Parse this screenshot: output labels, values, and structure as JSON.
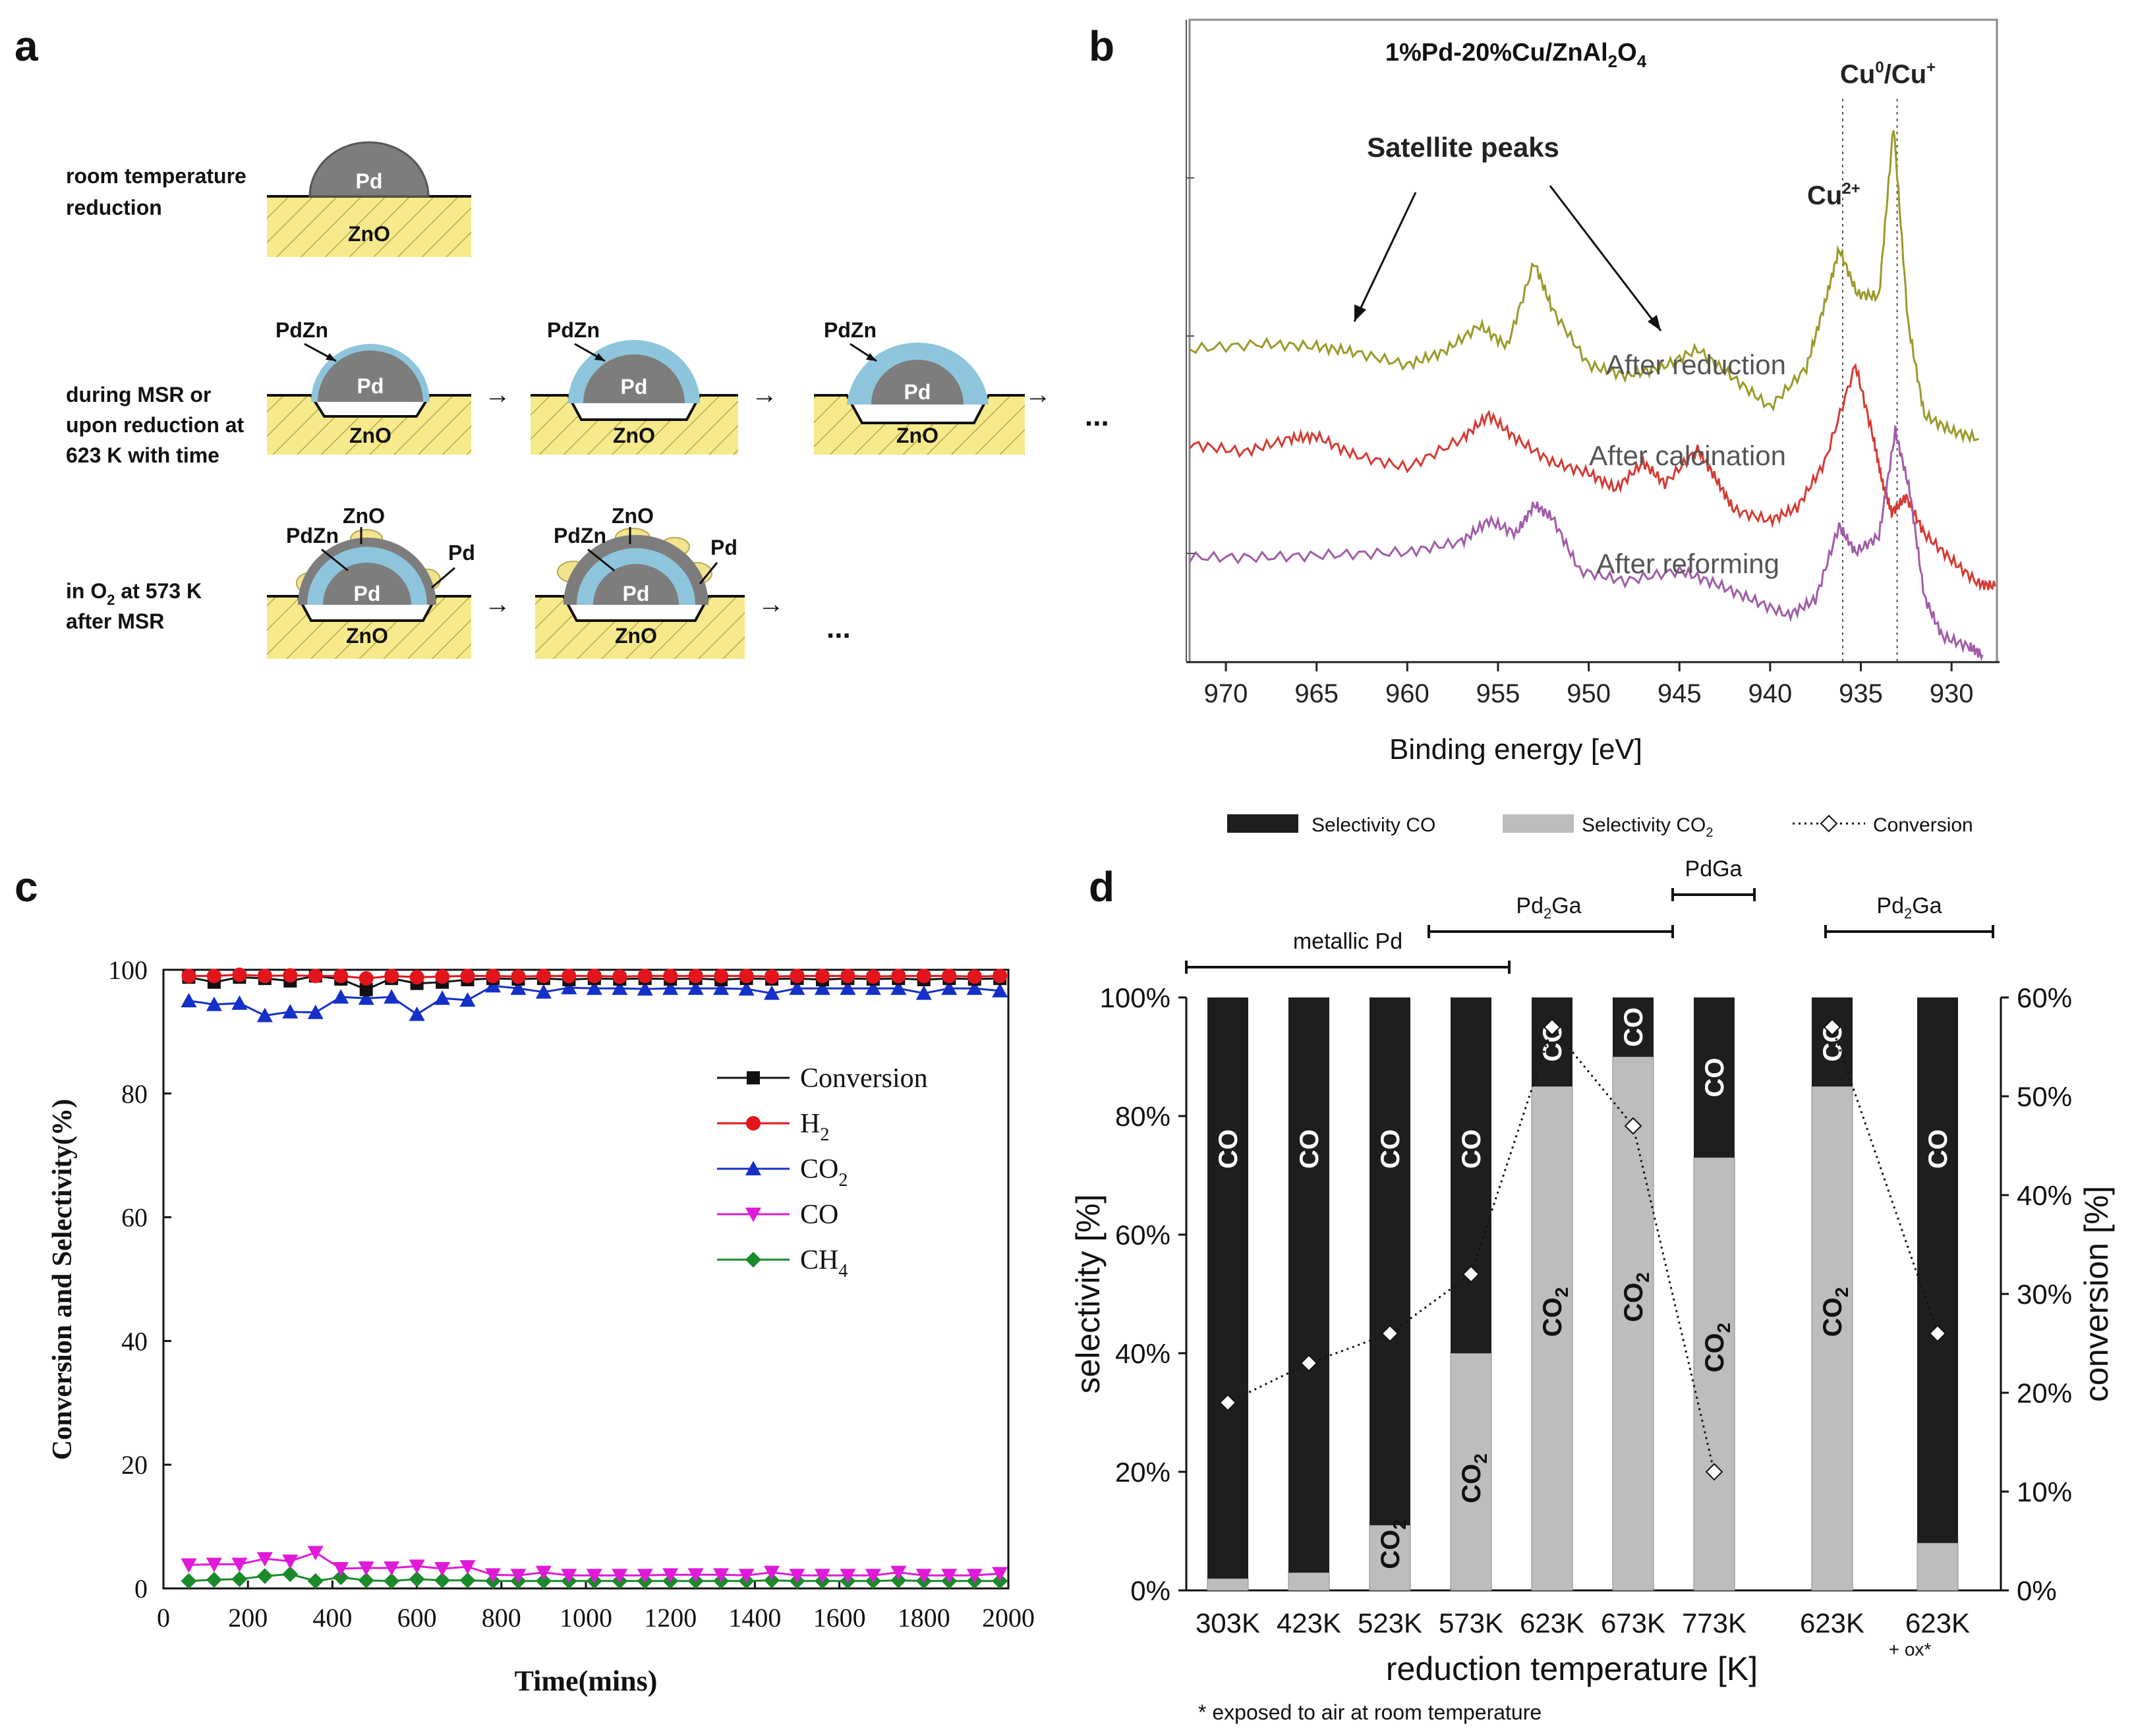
{
  "panels": {
    "a": {
      "label": "a",
      "row1_caption": [
        "room temperature",
        "reduction"
      ],
      "row2_caption": [
        "during MSR or",
        "upon reduction at",
        "623 K with time"
      ],
      "row3_caption": [
        "in O",
        "2",
        " at 573 K",
        "after MSR"
      ],
      "pd": "Pd",
      "zno": "ZnO",
      "pdzn": "PdZn",
      "ellipsis": "..."
    },
    "b": {
      "label": "b"
    },
    "c": {
      "label": "c"
    },
    "d": {
      "label": "d",
      "phase_metallic": "metallic Pd",
      "phase_pd2ga_a": "Pd",
      "phase_pd2ga_b": "2",
      "phase_pd2ga_c": "Ga",
      "phase_pdga": "PdGa",
      "bar_label_co": "CO",
      "bar_label_co2_a": "CO",
      "bar_label_co2_b": "2",
      "footnote": "* exposed to air at room temperature",
      "ox_note": "+ ox*"
    }
  },
  "chart_data": [
    {
      "id": "b",
      "type": "line",
      "title_a": "1%Pd-20%Cu/ZnAl",
      "title_b": "2",
      "title_c": "O",
      "title_d": "4",
      "xlabel": "Binding energy [eV]",
      "xlim": [
        972,
        927.5
      ],
      "xticks": [
        970,
        965,
        960,
        955,
        950,
        945,
        940,
        935,
        930
      ],
      "ylabel": "",
      "annotations": {
        "satellite": "Satellite peaks",
        "cu2plus_a": "Cu",
        "cu2plus_b": "2+",
        "cu0_a": "Cu",
        "cu0_b": "0",
        "cu0_c": "/Cu",
        "cu0_d": "+",
        "ref_lines_ev": [
          936.0,
          933.0
        ]
      },
      "series": [
        {
          "name": "After reduction",
          "color": "#9a9a2a",
          "points": [
            [
              972,
              250
            ],
            [
              968,
              246
            ],
            [
              965,
              248
            ],
            [
              963,
              252
            ],
            [
              960,
              262
            ],
            [
              958,
              252
            ],
            [
              956,
              232
            ],
            [
              954.5,
              248
            ],
            [
              953,
              184
            ],
            [
              952,
              220
            ],
            [
              950,
              262
            ],
            [
              948,
              270
            ],
            [
              946,
              264
            ],
            [
              944,
              250
            ],
            [
              942,
              272
            ],
            [
              940,
              294
            ],
            [
              938,
              264
            ],
            [
              937,
              216
            ],
            [
              936.2,
              174
            ],
            [
              935.2,
              208
            ],
            [
              934,
              210
            ],
            [
              933.2,
              80
            ],
            [
              932.4,
              230
            ],
            [
              931.5,
              300
            ],
            [
              930,
              312
            ],
            [
              928.5,
              318
            ]
          ]
        },
        {
          "name": "After calcination",
          "color": "#d43b33",
          "points": [
            [
              972,
              322
            ],
            [
              969,
              328
            ],
            [
              966.5,
              318
            ],
            [
              965,
              316
            ],
            [
              963,
              330
            ],
            [
              960,
              340
            ],
            [
              957,
              318
            ],
            [
              955.5,
              300
            ],
            [
              954,
              318
            ],
            [
              952,
              336
            ],
            [
              950,
              344
            ],
            [
              948.5,
              356
            ],
            [
              947,
              336
            ],
            [
              945.8,
              352
            ],
            [
              944,
              326
            ],
            [
              943,
              348
            ],
            [
              942,
              372
            ],
            [
              940,
              380
            ],
            [
              938.5,
              370
            ],
            [
              937,
              336
            ],
            [
              935.3,
              262
            ],
            [
              934.3,
              318
            ],
            [
              933.8,
              352
            ],
            [
              933.3,
              374
            ],
            [
              932.5,
              362
            ],
            [
              931.5,
              390
            ],
            [
              930,
              410
            ],
            [
              928.5,
              428
            ],
            [
              927.6,
              430
            ]
          ]
        },
        {
          "name": "After reforming",
          "color": "#a15ca8",
          "points": [
            [
              972,
              408
            ],
            [
              968,
              408
            ],
            [
              964,
              406
            ],
            [
              960,
              404
            ],
            [
              957,
              396
            ],
            [
              955.5,
              380
            ],
            [
              954,
              390
            ],
            [
              953,
              368
            ],
            [
              952,
              378
            ],
            [
              950.5,
              418
            ],
            [
              948,
              426
            ],
            [
              945,
              418
            ],
            [
              943,
              428
            ],
            [
              941,
              440
            ],
            [
              939,
              452
            ],
            [
              937.5,
              440
            ],
            [
              936.2,
              384
            ],
            [
              935.3,
              404
            ],
            [
              934,
              392
            ],
            [
              933.1,
              312
            ],
            [
              932.3,
              358
            ],
            [
              931.5,
              438
            ],
            [
              930.5,
              468
            ],
            [
              929,
              476
            ],
            [
              928.3,
              482
            ]
          ]
        }
      ]
    },
    {
      "id": "c",
      "type": "line",
      "xlabel": "Time(mins)",
      "ylabel": "Conversion and Selectivity(%)",
      "xlim": [
        0,
        2000
      ],
      "ylim": [
        0,
        100
      ],
      "xticks": [
        0,
        200,
        400,
        600,
        800,
        1000,
        1200,
        1400,
        1600,
        1800,
        2000
      ],
      "yticks": [
        0,
        20,
        40,
        60,
        80,
        100
      ],
      "x": [
        60,
        120,
        180,
        240,
        300,
        360,
        420,
        480,
        540,
        600,
        660,
        720,
        780,
        840,
        900,
        960,
        1020,
        1080,
        1140,
        1200,
        1260,
        1320,
        1380,
        1440,
        1500,
        1560,
        1620,
        1680,
        1740,
        1800,
        1860,
        1920,
        1980
      ],
      "series": [
        {
          "name": "Conversion",
          "label_a": "Conversion",
          "label_b": "",
          "color": "#111111",
          "marker": "square",
          "values": [
            98.8,
            98,
            98.8,
            98.6,
            98.2,
            99,
            98.5,
            96.8,
            98.6,
            97.8,
            98,
            98.4,
            98.6,
            98.5,
            98.6,
            98.4,
            98.6,
            98.5,
            98.6,
            98.5,
            98.6,
            98.4,
            98.6,
            98.5,
            98.6,
            98.4,
            98.6,
            98.5,
            98.6,
            98.4,
            98.6,
            98.5,
            98.6
          ]
        },
        {
          "name": "H2",
          "label_a": "H",
          "label_b": "2",
          "color": "#e3141c",
          "marker": "circle",
          "values": [
            99,
            99,
            99.2,
            99,
            99.1,
            99,
            99,
            98.6,
            99,
            98.8,
            98.9,
            99,
            99,
            98.9,
            99,
            99,
            99,
            98.9,
            99,
            99,
            99,
            99,
            99,
            98.9,
            99,
            99,
            99,
            98.9,
            99,
            99,
            99,
            98.9,
            99
          ]
        },
        {
          "name": "CO2",
          "label_a": "CO",
          "label_b": "2",
          "color": "#1530c8",
          "marker": "triangle-up",
          "values": [
            95,
            94.4,
            94.6,
            92.6,
            93.2,
            93.1,
            95.6,
            95.4,
            95.6,
            92.8,
            95.4,
            95.1,
            97.4,
            97,
            96.4,
            97.1,
            97,
            97,
            96.9,
            97,
            97,
            97,
            96.9,
            96.2,
            97,
            97,
            97,
            97,
            97,
            96.2,
            97,
            97,
            96.6
          ]
        },
        {
          "name": "CO",
          "label_a": "CO",
          "label_b": "",
          "color": "#e01ad8",
          "marker": "triangle-down",
          "values": [
            3.8,
            3.9,
            3.9,
            4.8,
            4.4,
            5.8,
            3.2,
            3.3,
            3.3,
            3.6,
            3.2,
            3.5,
            2.2,
            2.1,
            2.6,
            2.1,
            2.1,
            2.1,
            2.1,
            2.2,
            2.2,
            2.2,
            2.1,
            2.6,
            2.1,
            2.1,
            2.1,
            2.1,
            2.6,
            2.1,
            2.1,
            2.1,
            2.4
          ]
        },
        {
          "name": "CH4",
          "label_a": "CH",
          "label_b": "4",
          "color": "#1a8a2a",
          "marker": "diamond",
          "values": [
            1.2,
            1.4,
            1.5,
            2,
            2.3,
            1.2,
            1.8,
            1.3,
            1.2,
            1.5,
            1.3,
            1.3,
            1.2,
            1.2,
            1.2,
            1.2,
            1.2,
            1.2,
            1.2,
            1.2,
            1.2,
            1.2,
            1.2,
            1.3,
            1.2,
            1.2,
            1.2,
            1.2,
            1.3,
            1.2,
            1.2,
            1.2,
            1.2
          ]
        }
      ]
    },
    {
      "id": "d",
      "type": "bar",
      "xlabel": "reduction temperature [K]",
      "ylabel": "selectivity [%]",
      "ylabel_right": "conversion [%]",
      "categories": [
        "303K",
        "423K",
        "523K",
        "573K",
        "623K",
        "673K",
        "773K",
        "623K",
        "623K"
      ],
      "ylim": [
        0,
        100
      ],
      "ylim_right": [
        0,
        60
      ],
      "yticks": [
        "0%",
        "20%",
        "40%",
        "60%",
        "80%",
        "100%"
      ],
      "yticks_right": [
        "0%",
        "10%",
        "20%",
        "30%",
        "40%",
        "50%",
        "60%"
      ],
      "legend": {
        "co": "Selectivity CO",
        "co2_a": "Selectivity CO",
        "co2_b": "2",
        "conv": "Conversion"
      },
      "series": [
        {
          "name": "Selectivity CO2",
          "color": "#bdbdbd",
          "values": [
            2,
            3,
            11,
            40,
            85,
            90,
            73,
            85,
            8
          ]
        },
        {
          "name": "Selectivity CO",
          "color": "#1e1e1e",
          "values": [
            98,
            97,
            89,
            60,
            15,
            10,
            27,
            15,
            92
          ]
        },
        {
          "name": "Conversion",
          "color": "#111111",
          "axis": "right",
          "values": [
            19,
            23,
            26,
            32,
            57,
            47,
            12,
            57,
            26
          ]
        }
      ]
    }
  ]
}
